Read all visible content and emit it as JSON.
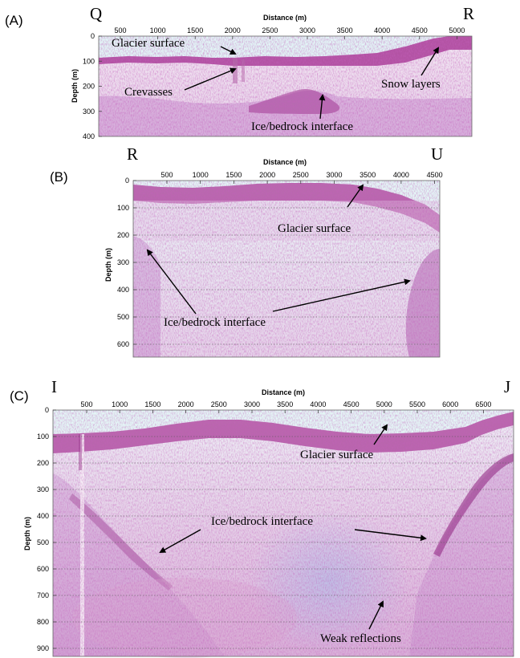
{
  "panels": [
    {
      "id": "a",
      "tag": "(A)",
      "start_letter": "Q",
      "end_letter": "R",
      "x_axis_title": "Distance (m)",
      "y_axis_title": "Depth (m)",
      "x_ticks": [
        "500",
        "1000",
        "1500",
        "2000",
        "2500",
        "3000",
        "3500",
        "4000",
        "4500",
        "5000"
      ],
      "y_ticks": [
        "0",
        "100",
        "200",
        "300",
        "400"
      ],
      "annotations": {
        "glacier_surface": "Glacier surface",
        "crevasses": "Crevasses",
        "snow_layers": "Snow layers",
        "ice_bedrock": "Ice/bedrock interface"
      }
    },
    {
      "id": "b",
      "tag": "(B)",
      "start_letter": "R",
      "end_letter": "U",
      "x_axis_title": "Distance (m)",
      "y_axis_title": "Depth (m)",
      "x_ticks": [
        "500",
        "1000",
        "1500",
        "2000",
        "2500",
        "3000",
        "3500",
        "4000",
        "4500"
      ],
      "y_ticks": [
        "0",
        "100",
        "200",
        "300",
        "400",
        "500",
        "600"
      ],
      "annotations": {
        "glacier_surface": "Glacier surface",
        "ice_bedrock": "Ice/bedrock interface"
      }
    },
    {
      "id": "c",
      "tag": "(C)",
      "start_letter": "I",
      "end_letter": "J",
      "x_axis_title": "Distance (m)",
      "y_axis_title": "Depth (m)",
      "x_ticks": [
        "500",
        "1000",
        "1500",
        "2000",
        "2500",
        "3000",
        "3500",
        "4000",
        "4500",
        "5000",
        "5500",
        "6000",
        "6500"
      ],
      "y_ticks": [
        "0",
        "100",
        "200",
        "300",
        "400",
        "500",
        "600",
        "700",
        "800",
        "900"
      ],
      "annotations": {
        "glacier_surface": "Glacier surface",
        "ice_bedrock": "Ice/bedrock interface",
        "weak_reflections": "Weak reflections"
      }
    }
  ],
  "colors": {
    "air": "#e4f6f6",
    "ice": "#ece1ee",
    "signal": "#9a2a86",
    "deep": "#c99ad6"
  }
}
